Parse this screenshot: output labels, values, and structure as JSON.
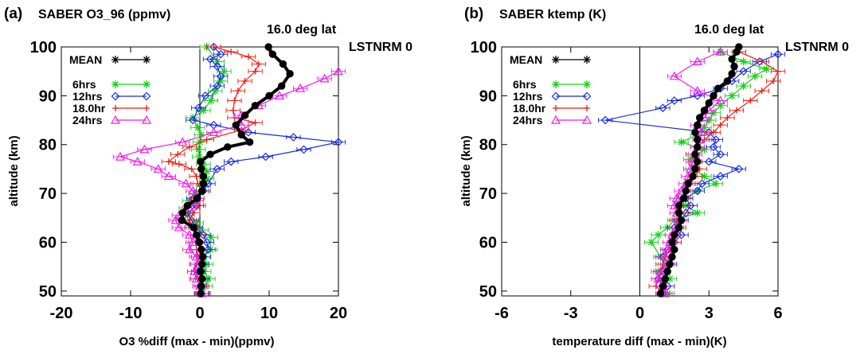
{
  "chart_data": [
    {
      "type": "line",
      "panel_label": "(a)",
      "title": "SABER O3_96 (ppmv)",
      "annotation_lat": "16.0 deg lat",
      "annotation_lst": "LSTNRM 0",
      "xlabel": "O3 %diff (max - min)(ppmv)",
      "ylabel": "altitude (km)",
      "xlim": [
        -20,
        20
      ],
      "ylim": [
        49,
        100
      ],
      "xticks": [
        "-20",
        "-10",
        "0",
        "10",
        "20"
      ],
      "yticks": [
        "50",
        "60",
        "70",
        "80",
        "90",
        "100"
      ],
      "legend_position": "top-left",
      "series": [
        {
          "name": "MEAN",
          "color": "#000000",
          "marker": "dot",
          "x": [
            0.1,
            0.2,
            0.3,
            0.1,
            0.3,
            0.4,
            0.2,
            -0.1,
            -0.5,
            -0.9,
            -2.6,
            -2.5,
            -1.8,
            -0.4,
            0.3,
            0.5,
            0.5,
            0.2,
            0.1,
            1.5,
            4.0,
            7.2,
            6.0,
            5.2,
            6.5,
            8.0,
            10.0,
            11.8,
            13.0,
            12.0,
            10.5,
            9.9
          ],
          "y": [
            49.5,
            51,
            52.5,
            54,
            55.5,
            57,
            58.5,
            60,
            61.5,
            63,
            64.5,
            66,
            67.5,
            69,
            70.5,
            72,
            73.5,
            75,
            76.5,
            78,
            79.5,
            80.5,
            82,
            84,
            86,
            88,
            90,
            92,
            94.5,
            96.5,
            98.5,
            100
          ]
        },
        {
          "name": "6hrs",
          "color": "#18d018",
          "marker": "asterisk",
          "x": [
            0.4,
            0.8,
            1.2,
            0.6,
            0.9,
            0.6,
            1.5,
            1.6,
            0.2,
            -0.5,
            -1.8,
            -2.0,
            -1.5,
            -0.6,
            0.5,
            1.0,
            1.0,
            0.5,
            -0.1,
            -0.2,
            0.0,
            0.2,
            -0.3,
            -1.0,
            0.5,
            1.6,
            2.2,
            3.0,
            3.5,
            2.5,
            1.0
          ],
          "y": [
            49.5,
            51,
            52.5,
            54,
            55.5,
            57,
            58.5,
            61,
            62.5,
            64,
            65.5,
            67,
            68.5,
            70,
            71.5,
            73,
            74.5,
            76,
            77.5,
            79,
            80.5,
            82,
            83.5,
            85.5,
            87,
            89,
            91,
            93,
            95,
            97,
            100
          ]
        },
        {
          "name": "12hrs",
          "color": "#1a2ee0",
          "marker": "diamond",
          "x": [
            0.2,
            0.0,
            0.4,
            -0.2,
            0.3,
            0.5,
            1.2,
            1.0,
            0.5,
            -0.6,
            -1.2,
            -1.8,
            -0.5,
            -0.9,
            0.5,
            1.2,
            2.5,
            4.5,
            9.5,
            15.0,
            20.0,
            13.5,
            7.0,
            2.0,
            -1.0,
            -0.2,
            0.8,
            2.5,
            3.0,
            2.5,
            1.5,
            3.0,
            2.0
          ],
          "y": [
            49.5,
            51,
            52.5,
            54,
            55.5,
            57,
            58.5,
            60,
            61.5,
            63,
            64.5,
            66,
            67.5,
            69,
            70.5,
            72,
            75,
            76.5,
            77.5,
            79,
            80.5,
            81.5,
            82.5,
            84,
            85,
            87.5,
            90,
            92,
            94,
            96,
            97.5,
            98.5,
            100
          ]
        },
        {
          "name": "18.0hr",
          "color": "#f01c10",
          "marker": "plus",
          "x": [
            0.5,
            0.3,
            -0.3,
            -0.8,
            -0.5,
            -0.2,
            -0.5,
            -0.6,
            -0.3,
            -1.2,
            -1.5,
            -1.0,
            -0.2,
            -0.4,
            0.2,
            -0.3,
            -0.5,
            -1.2,
            -3.0,
            -4.5,
            -3.2,
            -1.5,
            1.0,
            6.0,
            8.0,
            5.0,
            4.8,
            5.0,
            5.5,
            6.5,
            8.0,
            8.5,
            7.0,
            4.5,
            2.0
          ],
          "y": [
            49.5,
            51,
            52.5,
            54,
            55.5,
            57,
            58.5,
            60,
            61.5,
            63,
            64.5,
            66,
            67.5,
            69,
            70.5,
            72,
            73.5,
            75,
            76,
            76.5,
            78,
            79.5,
            81,
            83,
            84.5,
            85.5,
            87,
            89,
            91,
            93,
            95,
            96.5,
            98,
            99,
            100
          ]
        },
        {
          "name": "24hrs",
          "color": "#f01cf0",
          "marker": "triangle",
          "x": [
            0.3,
            0.0,
            -0.5,
            -0.8,
            -0.3,
            -0.5,
            -1.5,
            -1.0,
            -1.5,
            -3.0,
            -3.5,
            -3.0,
            -1.5,
            -0.5,
            -1.0,
            -2.0,
            -4.5,
            -6.0,
            -9.0,
            -11.5,
            -8.0,
            -2.5,
            2.0,
            6.0,
            6.0,
            8.5,
            11.5,
            14.5,
            18.0,
            20.0
          ],
          "y": [
            49.5,
            51,
            52.5,
            54,
            55.5,
            57,
            58.5,
            60,
            61.5,
            63,
            64.5,
            65.5,
            67,
            68.5,
            70.5,
            72,
            73.5,
            75,
            76.5,
            77.5,
            79,
            80.5,
            82.5,
            84,
            86,
            88,
            90,
            91.5,
            93.5,
            95
          ]
        }
      ]
    },
    {
      "type": "line",
      "panel_label": "(b)",
      "title": "SABER ktemp (K)",
      "annotation_lat": "16.0 deg lat",
      "annotation_lst": "LSTNRM 0",
      "xlabel": "temperature diff (max - min)(K)",
      "ylabel": "altitude (km)",
      "xlim": [
        -6,
        6
      ],
      "ylim": [
        49,
        100
      ],
      "xticks": [
        "-6",
        "-3",
        "0",
        "3",
        "6"
      ],
      "yticks": [
        "50",
        "60",
        "70",
        "80",
        "90",
        "100"
      ],
      "legend_position": "top-left",
      "series": [
        {
          "name": "MEAN",
          "color": "#000000",
          "marker": "dot",
          "x": [
            0.9,
            1.0,
            1.1,
            1.2,
            1.3,
            1.4,
            1.5,
            1.4,
            1.5,
            1.7,
            1.8,
            1.7,
            1.7,
            1.9,
            2.0,
            2.1,
            2.3,
            2.4,
            2.5,
            2.4,
            2.5,
            2.5,
            2.4,
            2.5,
            2.6,
            2.8,
            3.0,
            3.2,
            3.4,
            3.8,
            4.0,
            4.1,
            4.0,
            4.2,
            4.3
          ],
          "y": [
            49.5,
            51,
            52.5,
            54,
            55.5,
            57,
            58.5,
            60,
            61.5,
            63,
            64.5,
            66,
            67.5,
            69,
            70.5,
            72,
            73.5,
            75,
            76.5,
            78,
            79.5,
            81,
            82.5,
            84,
            85.5,
            87,
            88.5,
            90,
            91.5,
            93,
            94.5,
            96,
            97.5,
            99,
            100
          ]
        },
        {
          "name": "6hrs",
          "color": "#18d018",
          "marker": "asterisk",
          "x": [
            1.2,
            1.0,
            1.3,
            0.8,
            1.1,
            0.9,
            0.5,
            0.8,
            1.2,
            1.5,
            2.5,
            2.0,
            2.0,
            2.5,
            3.3,
            2.8,
            2.3,
            2.2,
            2.8,
            1.8,
            2.5,
            2.8,
            3.0,
            3.2,
            3.5,
            4.0,
            4.5,
            5.0,
            5.5,
            4.5,
            3.5
          ],
          "y": [
            49.5,
            51,
            52.5,
            54,
            55.5,
            57,
            60,
            61.5,
            63,
            64.5,
            66,
            67.5,
            69,
            70.5,
            72,
            73.5,
            75,
            77,
            79,
            80.5,
            82,
            83.5,
            85,
            86.5,
            88,
            90,
            92,
            94,
            95.5,
            97,
            99
          ]
        },
        {
          "name": "12hrs",
          "color": "#1a2ee0",
          "marker": "diamond",
          "x": [
            1.0,
            1.2,
            0.8,
            1.0,
            1.3,
            1.0,
            1.2,
            1.5,
            1.8,
            1.5,
            1.8,
            2.0,
            2.2,
            2.0,
            2.5,
            2.7,
            3.5,
            4.3,
            3.0,
            3.5,
            3.2,
            3.3,
            3.0,
            -1.5,
            1.0,
            1.5,
            2.5,
            3.5,
            4.0,
            4.5,
            5.2,
            6.0
          ],
          "y": [
            49.5,
            51,
            52.5,
            54,
            55.5,
            57,
            58.5,
            60,
            61.5,
            63,
            64.5,
            66,
            67.5,
            69,
            70.5,
            72,
            73.5,
            75,
            76.5,
            78,
            79.5,
            81,
            82.5,
            85,
            87.5,
            89,
            90,
            91.5,
            93,
            95,
            97,
            98.5
          ]
        },
        {
          "name": "18.0hr",
          "color": "#f01c10",
          "marker": "plus",
          "x": [
            1.0,
            0.7,
            0.8,
            0.9,
            1.0,
            1.1,
            1.3,
            1.5,
            1.6,
            1.7,
            1.6,
            1.8,
            1.8,
            1.9,
            2.0,
            2.2,
            2.4,
            2.6,
            2.4,
            2.3,
            2.5,
            2.8,
            3.2,
            3.5,
            3.8,
            4.2,
            4.8,
            5.3,
            5.8,
            6.0,
            5.3,
            4.3
          ],
          "y": [
            49.5,
            51,
            52.5,
            54,
            55.5,
            57,
            58.5,
            60,
            61.5,
            63,
            64.5,
            66,
            67.5,
            69,
            70.5,
            72,
            73.5,
            75,
            76.5,
            78,
            79.5,
            81,
            82.5,
            84,
            85.5,
            87,
            89,
            91,
            93,
            95,
            97,
            99
          ]
        },
        {
          "name": "24hrs",
          "color": "#f01cf0",
          "marker": "triangle",
          "x": [
            1.1,
            1.0,
            0.8,
            0.9,
            1.2,
            1.1,
            1.2,
            1.3,
            1.4,
            1.6,
            1.7,
            1.6,
            1.5,
            1.6,
            1.8,
            2.0,
            2.1,
            2.2,
            2.3,
            2.4,
            2.5,
            2.6,
            2.7,
            2.5,
            2.8,
            3.0,
            3.5,
            2.5,
            1.5,
            2.5,
            3.5
          ],
          "y": [
            49.5,
            51,
            52.5,
            54,
            55.5,
            57,
            58.5,
            60,
            61.5,
            63,
            64.5,
            66,
            67.5,
            69,
            70.5,
            72,
            73.5,
            75,
            76.5,
            78,
            79.5,
            81,
            82.5,
            84,
            85.5,
            87,
            89,
            91,
            94,
            97,
            99
          ]
        }
      ]
    }
  ]
}
